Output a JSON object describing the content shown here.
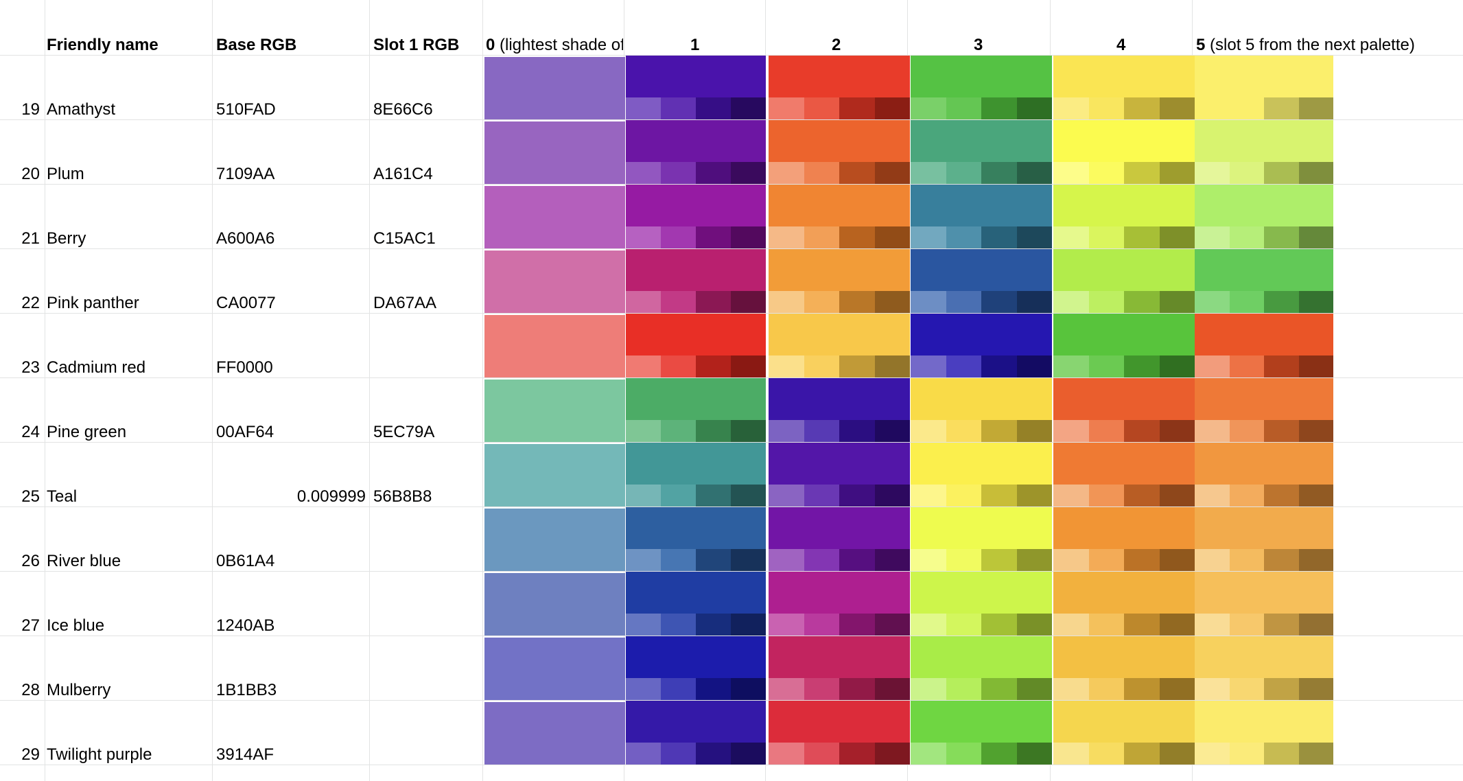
{
  "headers": {
    "friendly_name": "Friendly name",
    "base_rgb": "Base RGB",
    "slot1_rgb": "Slot 1 RGB",
    "col0_num": "0",
    "col0_text": " (lightest shade of",
    "col1": "1",
    "col2": "2",
    "col3": "3",
    "col4": "4",
    "col5_num": "5",
    "col5_text": " (slot 5 from the next palette)"
  },
  "rows": [
    {
      "num": "19",
      "name": "Amathyst",
      "base": "510FAD",
      "extra": "",
      "slot1": "8E66C6",
      "c0": "#8868c2",
      "cols": [
        {
          "main": "#4a13ab",
          "shades": [
            "#7f5bc4",
            "#6131b3",
            "#360e86",
            "#27095f"
          ]
        },
        {
          "main": "#e83c2a",
          "shades": [
            "#f07b6b",
            "#ea5844",
            "#b02a1d",
            "#8b1e14"
          ]
        },
        {
          "main": "#55c244",
          "shades": [
            "#7ad069",
            "#64c653",
            "#3e932f",
            "#2e6f24"
          ]
        },
        {
          "main": "#fae553",
          "shades": [
            "#fbec83",
            "#f9e65f",
            "#c8b43d",
            "#9d8d2e"
          ]
        },
        {
          "main": "#fbef6c",
          "shades": [
            "#fbef6c",
            "#fbef6c",
            "#c9c25a",
            "#9e9a44"
          ]
        }
      ]
    },
    {
      "num": "20",
      "name": "Plum",
      "base": "7109AA",
      "extra": "",
      "slot1": "A161C4",
      "c0": "#9865c0",
      "cols": [
        {
          "main": "#6d16a3",
          "shades": [
            "#9257c0",
            "#7a33b0",
            "#4f0e7d",
            "#3a0a5d"
          ]
        },
        {
          "main": "#ec642d",
          "shades": [
            "#f3a07a",
            "#ef8250",
            "#b84d1f",
            "#923b17"
          ]
        },
        {
          "main": "#4aa67c",
          "shades": [
            "#78c0a0",
            "#5cb08c",
            "#37805e",
            "#285f46"
          ]
        },
        {
          "main": "#fbfb4f",
          "shades": [
            "#fdfd8a",
            "#fbfb5f",
            "#c9c83e",
            "#9e9d2e"
          ]
        },
        {
          "main": "#d8f36f",
          "shades": [
            "#e5f69b",
            "#dcf37e",
            "#aabd52",
            "#7f8f3d"
          ]
        }
      ]
    },
    {
      "num": "21",
      "name": "Berry",
      "base": "A600A6",
      "extra": "",
      "slot1": "C15AC1",
      "c0": "#b45fbc",
      "cols": [
        {
          "main": "#961ba3",
          "shades": [
            "#b661c1",
            "#a238b0",
            "#700f7d",
            "#53095e"
          ]
        },
        {
          "main": "#f08532",
          "shades": [
            "#f5b987",
            "#f29f57",
            "#b8631f",
            "#924c17"
          ]
        },
        {
          "main": "#387f9c",
          "shades": [
            "#72a8bf",
            "#4f90ab",
            "#28627a",
            "#1d485b"
          ]
        },
        {
          "main": "#d6f54b",
          "shades": [
            "#e6f98d",
            "#daf55e",
            "#a7bf36",
            "#7e9029"
          ]
        },
        {
          "main": "#aeee6a",
          "shades": [
            "#c9f296",
            "#b6ee79",
            "#87b94d",
            "#65893a"
          ]
        }
      ]
    },
    {
      "num": "22",
      "name": "Pink panther",
      "base": "CA0077",
      "extra": "",
      "slot1": "DA67AA",
      "c0": "#d06fa8",
      "cols": [
        {
          "main": "#b9206f",
          "shades": [
            "#d066a0",
            "#c23a86",
            "#8b1854",
            "#66113d"
          ]
        },
        {
          "main": "#f29c38",
          "shades": [
            "#f7c987",
            "#f4b058",
            "#b97728",
            "#8f5b1e"
          ]
        },
        {
          "main": "#2a56a0",
          "shades": [
            "#6d8ec4",
            "#4a6fb2",
            "#1f417a",
            "#162f59"
          ]
        },
        {
          "main": "#b2ec4b",
          "shades": [
            "#d1f48e",
            "#bdef61",
            "#88b936",
            "#668a29"
          ]
        },
        {
          "main": "#62c957",
          "shades": [
            "#8bd982",
            "#6fcf64",
            "#489a40",
            "#357230"
          ]
        }
      ]
    },
    {
      "num": "23",
      "name": "Cadmium red",
      "base": "FF0000",
      "extra": "",
      "slot1": "",
      "c0": "#ee7d78",
      "cols": [
        {
          "main": "#e82f26",
          "shades": [
            "#f07a72",
            "#ea4b43",
            "#b2221b",
            "#8a1913"
          ]
        },
        {
          "main": "#f8c84a",
          "shades": [
            "#fbe08b",
            "#f9d05e",
            "#c19a37",
            "#93752a"
          ]
        },
        {
          "main": "#2517b0",
          "shades": [
            "#7369c9",
            "#4a3ec0",
            "#1b1087",
            "#130b63"
          ]
        },
        {
          "main": "#58c43c",
          "shades": [
            "#88d571",
            "#6bca52",
            "#41962c",
            "#306f21"
          ]
        },
        {
          "main": "#ea5527",
          "shades": [
            "#f29c7c",
            "#ed7245",
            "#b23f1c",
            "#8a3015"
          ]
        }
      ]
    },
    {
      "num": "24",
      "name": "Pine green",
      "base": "00AF64",
      "extra": "",
      "slot1": "5EC79A",
      "c0": "#7cc79f",
      "cols": [
        {
          "main": "#4cac66",
          "shades": [
            "#7fc695",
            "#5db37a",
            "#37834d",
            "#286139"
          ]
        },
        {
          "main": "#3a15a8",
          "shades": [
            "#7c63c2",
            "#573ab4",
            "#2b0e81",
            "#1f095f"
          ]
        },
        {
          "main": "#f9db48",
          "shades": [
            "#fbe98b",
            "#fadd5e",
            "#c2a935",
            "#958127"
          ]
        },
        {
          "main": "#ea5e2d",
          "shades": [
            "#f3a584",
            "#ee7d4f",
            "#b54621",
            "#8c3518"
          ]
        },
        {
          "main": "#ee7937",
          "shades": [
            "#f4b98b",
            "#f0955a",
            "#b85c27",
            "#8e461d"
          ]
        }
      ]
    },
    {
      "num": "25",
      "name": "Teal",
      "base": "",
      "extra": "0.009999",
      "slot1": "56B8B8",
      "c0": "#74b8b8",
      "cols": [
        {
          "main": "#429797",
          "shades": [
            "#76b6b6",
            "#52a3a3",
            "#317171",
            "#235353"
          ]
        },
        {
          "main": "#5316a8",
          "shades": [
            "#8a64c2",
            "#6a38b4",
            "#3f0e81",
            "#2d095f"
          ]
        },
        {
          "main": "#fbef4d",
          "shades": [
            "#fdf68c",
            "#fbf15f",
            "#c8bd38",
            "#9d942a"
          ]
        },
        {
          "main": "#ef7a33",
          "shades": [
            "#f4b887",
            "#f19556",
            "#b85d24",
            "#8e471b"
          ]
        },
        {
          "main": "#f1973f",
          "shades": [
            "#f6c88f",
            "#f3ac5d",
            "#bc742e",
            "#915a23"
          ]
        }
      ]
    },
    {
      "num": "26",
      "name": "River blue",
      "base": "0B61A4",
      "extra": "",
      "slot1": "",
      "c0": "#6b98bf",
      "cols": [
        {
          "main": "#2d5fa0",
          "shades": [
            "#6e93c3",
            "#4776b3",
            "#20457a",
            "#17325a"
          ]
        },
        {
          "main": "#7215a6",
          "shades": [
            "#a063c1",
            "#8336b3",
            "#560f80",
            "#3f0a5e"
          ]
        },
        {
          "main": "#eefb4f",
          "shades": [
            "#f6fd8d",
            "#f1fb60",
            "#bcc639",
            "#8f972b"
          ]
        },
        {
          "main": "#f19535",
          "shades": [
            "#f6c889",
            "#f3ab57",
            "#bb7226",
            "#90581d"
          ]
        },
        {
          "main": "#f2ab4c",
          "shades": [
            "#f7d291",
            "#f4bb5f",
            "#bd8638",
            "#92672a"
          ]
        }
      ]
    },
    {
      "num": "27",
      "name": "Ice blue",
      "base": "1240AB",
      "extra": "",
      "slot1": "",
      "c0": "#6e80c0",
      "cols": [
        {
          "main": "#1f3da3",
          "shades": [
            "#6577c2",
            "#3e55b3",
            "#172d7d",
            "#11215d"
          ]
        },
        {
          "main": "#ae1f90",
          "shades": [
            "#c962b1",
            "#b93a9e",
            "#83156c",
            "#611050"
          ]
        },
        {
          "main": "#cdf54b",
          "shades": [
            "#e1f98b",
            "#d3f65e",
            "#a2c035",
            "#7a9128"
          ]
        },
        {
          "main": "#f2b13e",
          "shades": [
            "#f7d68e",
            "#f4c15c",
            "#bd882c",
            "#926922"
          ]
        },
        {
          "main": "#f6bf5a",
          "shades": [
            "#f9dc96",
            "#f7c86b",
            "#c09542",
            "#937032"
          ]
        }
      ]
    },
    {
      "num": "28",
      "name": "Mulberry",
      "base": "1B1BB3",
      "extra": "",
      "slot1": "",
      "c0": "#7272c6",
      "cols": [
        {
          "main": "#1c1cac",
          "shades": [
            "#6767c4",
            "#3e3eb6",
            "#131383",
            "#0e0e60"
          ]
        },
        {
          "main": "#c2245f",
          "shades": [
            "#d86e95",
            "#c93e73",
            "#921a47",
            "#6b1334"
          ]
        },
        {
          "main": "#a9ec48",
          "shades": [
            "#cbf38b",
            "#b5ee5c",
            "#82b934",
            "#628a27"
          ]
        },
        {
          "main": "#f3c043",
          "shades": [
            "#f8dc8e",
            "#f5ca5d",
            "#bd922f",
            "#916f23"
          ]
        },
        {
          "main": "#f7d15e",
          "shades": [
            "#fae29a",
            "#f8d771",
            "#c1a345",
            "#957c34"
          ]
        }
      ]
    },
    {
      "num": "29",
      "name": "Twilight purple",
      "base": "3914AF",
      "extra": "",
      "slot1": "",
      "c0": "#7d6cc4",
      "cols": [
        {
          "main": "#3419a8",
          "shades": [
            "#735fc3",
            "#4f38b5",
            "#25117f",
            "#1b0c5e"
          ]
        },
        {
          "main": "#dc2c3a",
          "shades": [
            "#e97880",
            "#df4c58",
            "#a5202a",
            "#7e1820"
          ]
        },
        {
          "main": "#6fd642",
          "shades": [
            "#a2e67f",
            "#86dc5a",
            "#51a22f",
            "#3c7723"
          ]
        },
        {
          "main": "#f5d64e",
          "shades": [
            "#f9e68f",
            "#f7dc61",
            "#bfa536",
            "#927e29"
          ]
        },
        {
          "main": "#fbeb6c",
          "shades": [
            "#fbeb94",
            "#fbeb7a",
            "#c7bb52",
            "#9a913e"
          ]
        }
      ]
    }
  ]
}
